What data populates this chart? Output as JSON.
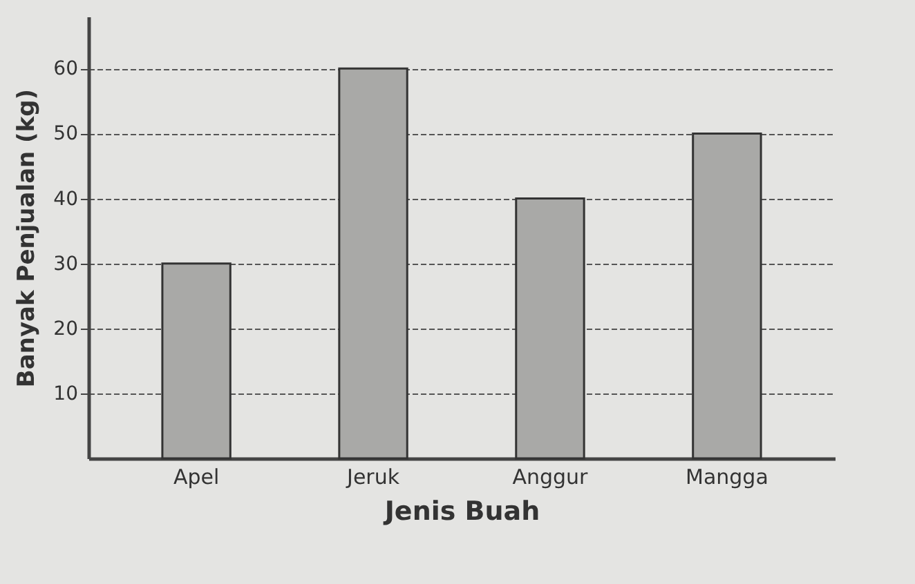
{
  "chart_data": {
    "type": "bar",
    "xlabel": "Jenis Buah",
    "ylabel": "Banyak Penjualan (kg)",
    "categories": [
      "Apel",
      "Jeruk",
      "Anggur",
      "Mangga"
    ],
    "values": [
      30,
      60,
      40,
      50
    ],
    "color": "#a9a9a7",
    "ylim": [
      0,
      68
    ],
    "yticks": [
      10,
      20,
      30,
      40,
      50,
      60
    ],
    "grid": true,
    "line_style": "dashed"
  }
}
